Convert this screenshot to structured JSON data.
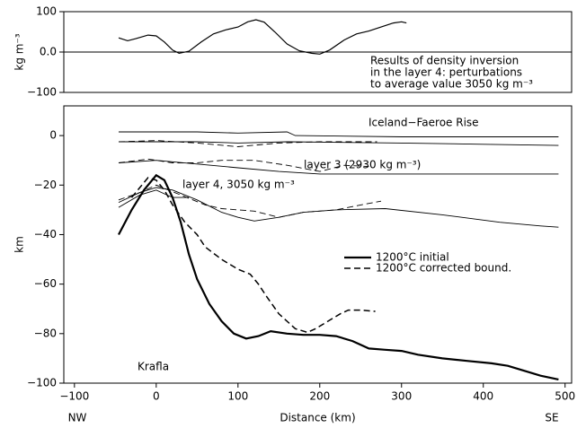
{
  "chart_data": [
    {
      "type": "line",
      "ylabel": "kg m⁻³",
      "xlim": [
        -113,
        508
      ],
      "ylim": [
        -100,
        100
      ],
      "yticks": [
        100,
        {
          "value": 0,
          "label": "0.0"
        },
        {
          "value": -100,
          "label": "−100"
        }
      ],
      "zero_line": true,
      "annotations": [
        "Results of density inversion",
        "in the layer 4: perturbations",
        "to average value 3050 kg m⁻³"
      ],
      "series": [
        {
          "color": "#000000",
          "style": "solid",
          "width": 1.2,
          "x": [
            -46,
            -35,
            -25,
            -10,
            0,
            10,
            20,
            28,
            40,
            55,
            70,
            85,
            100,
            112,
            122,
            132,
            145,
            160,
            175,
            190,
            200,
            212,
            230,
            245,
            260,
            275,
            290,
            300,
            306
          ],
          "values": [
            35,
            28,
            33,
            42,
            40,
            25,
            5,
            -3,
            2,
            25,
            45,
            55,
            62,
            75,
            80,
            74,
            50,
            20,
            3,
            -3,
            -5,
            5,
            30,
            45,
            52,
            62,
            72,
            75,
            72
          ]
        }
      ]
    },
    {
      "type": "line",
      "xlabel": "Distance (km)",
      "ylabel": "km",
      "xlim": [
        -113,
        508
      ],
      "ylim": [
        -100,
        12
      ],
      "xticks": [
        {
          "value": -100,
          "label": "−100"
        },
        0,
        100,
        200,
        300,
        400,
        500
      ],
      "yticks": [
        0,
        {
          "value": -20,
          "label": "−20"
        },
        {
          "value": -40,
          "label": "−40"
        },
        {
          "value": -60,
          "label": "−60"
        },
        {
          "value": -80,
          "label": "−80"
        },
        {
          "value": -100,
          "label": "−100"
        }
      ],
      "annotations": [
        "Iceland−Faeroe Rise",
        "layer 3 (2930 kg m⁻³)",
        "layer 4, 3050 kg m⁻³",
        "Krafla",
        "NW",
        "SE"
      ],
      "series": [
        {
          "name": "1200°C initial",
          "color": "#000000",
          "style": "solid",
          "width": 2.2,
          "x": [
            -46,
            -30,
            -15,
            0,
            10,
            20,
            30,
            40,
            50,
            65,
            80,
            95,
            110,
            125,
            140,
            160,
            180,
            200,
            220,
            240,
            260,
            280,
            300,
            320,
            350,
            380,
            410,
            430,
            450,
            470,
            492
          ],
          "values": [
            -40,
            -30,
            -22,
            -16,
            -18,
            -25,
            -35,
            -48,
            -58,
            -68,
            -75,
            -80,
            -82,
            -81,
            -79,
            -80,
            -80.5,
            -80.5,
            -81,
            -83,
            -86,
            -86.5,
            -87,
            -88.5,
            -90,
            -91,
            -92,
            -93,
            -95,
            -97,
            -98.5
          ]
        },
        {
          "name": "1200°C corrected bound.",
          "color": "#000000",
          "style": "dashed",
          "width": 1.5,
          "x": [
            -30,
            -20,
            -10,
            0,
            10,
            20,
            35,
            50,
            60,
            80,
            100,
            115,
            125,
            135,
            150,
            170,
            185,
            195,
            210,
            225,
            235,
            250,
            268
          ],
          "values": [
            -25,
            -21,
            -17,
            -18,
            -22,
            -28,
            -35,
            -40,
            -45,
            -50,
            -54,
            -56,
            -60,
            -65,
            -72,
            -78,
            -79.5,
            -78,
            -75,
            -72,
            -70.5,
            -70.5,
            -71
          ]
        },
        {
          "color": "#000000",
          "style": "solid",
          "width": 0.9,
          "x": [
            -46,
            50,
            100,
            160,
            170,
            300,
            492
          ],
          "values": [
            1.5,
            1.5,
            1,
            1.5,
            0,
            -0.5,
            -0.5
          ]
        },
        {
          "color": "#000000",
          "style": "solid",
          "width": 0.9,
          "x": [
            -46,
            50,
            100,
            160,
            300,
            400,
            492
          ],
          "values": [
            -2.5,
            -2.5,
            -3,
            -2.5,
            -3,
            -3.5,
            -4
          ]
        },
        {
          "color": "#000000",
          "style": "dashed",
          "width": 0.9,
          "x": [
            -46,
            0,
            50,
            100,
            150,
            200,
            270
          ],
          "values": [
            -2.5,
            -2,
            -3,
            -4.5,
            -3,
            -2.5,
            -2.5
          ]
        },
        {
          "color": "#000000",
          "style": "solid",
          "width": 0.9,
          "x": [
            -46,
            0,
            50,
            100,
            150,
            200,
            492
          ],
          "values": [
            -11,
            -10,
            -11.5,
            -13,
            -14.5,
            -15.5,
            -15.5
          ]
        },
        {
          "color": "#000000",
          "style": "dashed",
          "width": 0.9,
          "x": [
            -46,
            -10,
            20,
            50,
            80,
            120,
            160,
            200,
            230,
            260
          ],
          "values": [
            -11,
            -9.5,
            -11,
            -11,
            -10,
            -10,
            -12,
            -14.5,
            -12,
            -12.5
          ]
        },
        {
          "color": "#000000",
          "style": "solid",
          "width": 0.9,
          "x": [
            -46,
            -20,
            0,
            20,
            50,
            80,
            100,
            120,
            150,
            180,
            220,
            280,
            350,
            420,
            470,
            492
          ],
          "values": [
            -27,
            -23,
            -21,
            -22,
            -26,
            -31,
            -33,
            -34.5,
            -33,
            -31,
            -30,
            -29.5,
            -32,
            -35,
            -36.5,
            -37
          ]
        },
        {
          "color": "#000000",
          "style": "dashed",
          "width": 0.9,
          "x": [
            -46,
            -20,
            0,
            30,
            60,
            80,
            120,
            150,
            180,
            220,
            250,
            275
          ],
          "values": [
            -26,
            -23,
            -20,
            -24,
            -28,
            -29.5,
            -30.5,
            -33,
            -31,
            -30,
            -28,
            -26.5
          ]
        },
        {
          "color": "#000000",
          "style": "solid",
          "width": 0.9,
          "x": [
            -46,
            -20,
            0,
            20,
            40
          ],
          "values": [
            -29,
            -24,
            -22,
            -25,
            -25
          ]
        }
      ]
    }
  ]
}
